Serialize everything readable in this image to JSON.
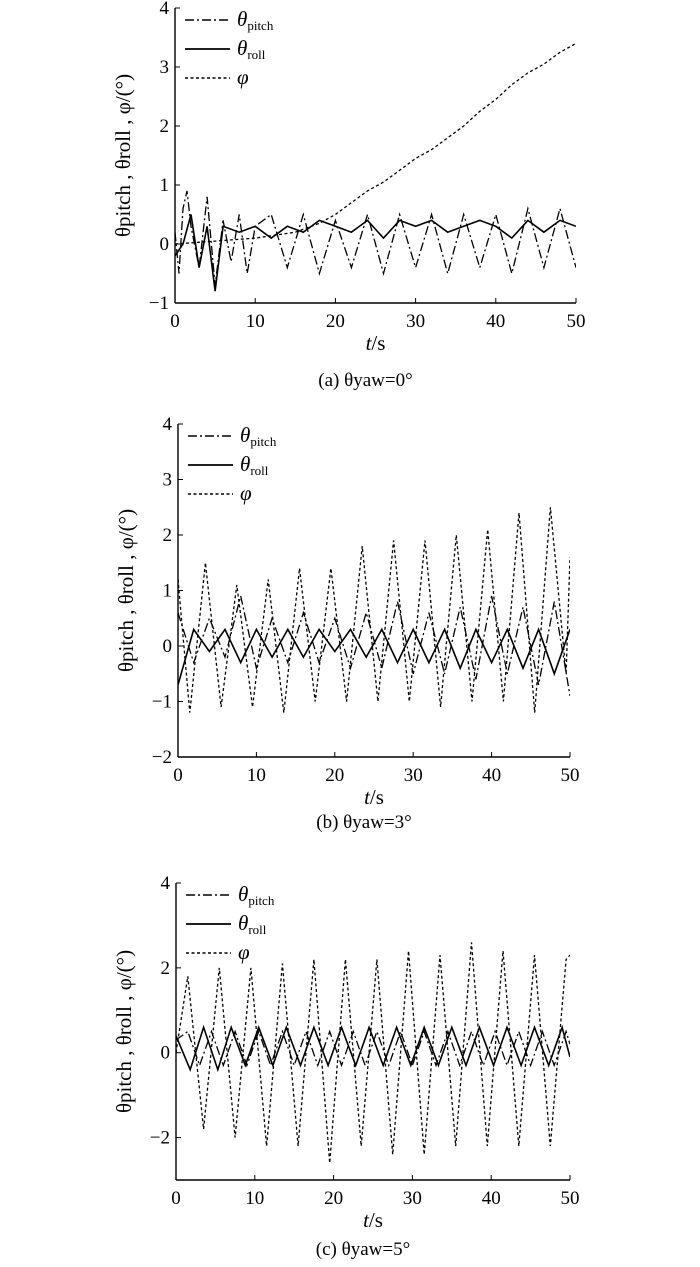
{
  "figure": {
    "xlabel": "t/s",
    "ylabel": "θpitch , θroll , φ/(°)"
  },
  "chart_data": [
    {
      "type": "line",
      "caption": "(a) θyaw=0°",
      "xlim": [
        0,
        50
      ],
      "ylim": [
        -1,
        4
      ],
      "xticks": [
        0,
        10,
        20,
        30,
        40,
        50
      ],
      "yticks": [
        -1,
        0,
        1,
        2,
        3,
        4
      ],
      "xlabel": "t/s",
      "ylabel": "θpitch , θroll , φ/(°)",
      "legend": [
        "θpitch",
        "θroll",
        "φ"
      ],
      "legend_position": "top-left",
      "series": [
        {
          "name": "θpitch",
          "style": "dashdot",
          "t": [
            0,
            0.5,
            1,
            1.5,
            2,
            3,
            4,
            5,
            6,
            7,
            8,
            9,
            10,
            12,
            14,
            16,
            18,
            20,
            22,
            24,
            26,
            28,
            30,
            32,
            34,
            36,
            38,
            40,
            42,
            44,
            46,
            48,
            50
          ],
          "values": [
            0.2,
            -0.5,
            0.6,
            0.9,
            0.3,
            -0.4,
            0.8,
            -0.7,
            0.4,
            -0.3,
            0.5,
            -0.5,
            0.3,
            0.5,
            -0.4,
            0.5,
            -0.5,
            0.4,
            -0.4,
            0.5,
            -0.5,
            0.5,
            -0.4,
            0.5,
            -0.5,
            0.5,
            -0.4,
            0.5,
            -0.5,
            0.6,
            -0.4,
            0.6,
            -0.4
          ]
        },
        {
          "name": "θroll",
          "style": "solid",
          "t": [
            0,
            1,
            2,
            3,
            4,
            5,
            6,
            8,
            10,
            12,
            14,
            16,
            18,
            20,
            22,
            24,
            26,
            28,
            30,
            32,
            34,
            36,
            38,
            40,
            42,
            44,
            46,
            48,
            50
          ],
          "values": [
            -0.2,
            0.0,
            0.5,
            -0.4,
            0.3,
            -0.8,
            0.3,
            0.2,
            0.3,
            0.1,
            0.3,
            0.2,
            0.4,
            0.3,
            0.2,
            0.4,
            0.1,
            0.4,
            0.3,
            0.4,
            0.2,
            0.3,
            0.4,
            0.3,
            0.1,
            0.4,
            0.2,
            0.4,
            0.3
          ]
        },
        {
          "name": "φ",
          "style": "dotted",
          "t": [
            0,
            5,
            10,
            15,
            18,
            20,
            22,
            24,
            26,
            28,
            30,
            32,
            34,
            36,
            38,
            40,
            42,
            44,
            46,
            48,
            50
          ],
          "values": [
            0.0,
            0.05,
            0.1,
            0.2,
            0.35,
            0.5,
            0.7,
            0.9,
            1.05,
            1.25,
            1.45,
            1.6,
            1.8,
            2.0,
            2.25,
            2.45,
            2.7,
            2.9,
            3.05,
            3.25,
            3.4
          ]
        }
      ]
    },
    {
      "type": "line",
      "caption": "(b) θyaw=3°",
      "xlim": [
        0,
        50
      ],
      "ylim": [
        -2,
        4
      ],
      "xticks": [
        0,
        10,
        20,
        30,
        40,
        50
      ],
      "yticks": [
        -2,
        -1,
        0,
        1,
        2,
        3,
        4
      ],
      "xlabel": "t/s",
      "ylabel": "θpitch , θroll , φ/(°)",
      "legend": [
        "θpitch",
        "θroll",
        "φ"
      ],
      "legend_position": "top-left",
      "series": [
        {
          "name": "θpitch",
          "style": "dashdot",
          "t": [
            0,
            2,
            4,
            6,
            8,
            10,
            12,
            14,
            16,
            18,
            20,
            22,
            24,
            26,
            28,
            30,
            32,
            34,
            36,
            38,
            40,
            42,
            44,
            46,
            48,
            50
          ],
          "values": [
            0.6,
            -0.3,
            0.5,
            -0.2,
            0.9,
            -0.4,
            0.5,
            -0.3,
            0.6,
            -0.3,
            0.5,
            -0.4,
            0.6,
            -0.4,
            0.8,
            -0.5,
            0.6,
            -0.5,
            0.7,
            -0.6,
            0.9,
            -0.5,
            0.7,
            -0.7,
            0.8,
            -0.9
          ]
        },
        {
          "name": "θroll",
          "style": "solid",
          "t": [
            0,
            2,
            4,
            6,
            8,
            10,
            12,
            14,
            16,
            18,
            20,
            22,
            24,
            26,
            28,
            30,
            32,
            34,
            36,
            38,
            40,
            42,
            44,
            46,
            48,
            50
          ],
          "values": [
            -0.7,
            0.3,
            -0.1,
            0.3,
            -0.3,
            0.3,
            -0.2,
            0.3,
            -0.2,
            0.3,
            -0.1,
            0.3,
            -0.2,
            0.3,
            -0.3,
            0.3,
            -0.3,
            0.3,
            -0.4,
            0.3,
            -0.3,
            0.3,
            -0.4,
            0.3,
            -0.5,
            0.3
          ]
        },
        {
          "name": "φ",
          "style": "dotted",
          "t": [
            0,
            1.5,
            3.5,
            5.5,
            7.5,
            9.5,
            11.5,
            13.5,
            15.5,
            17.5,
            19.5,
            21.5,
            23.5,
            25.5,
            27.5,
            29.5,
            31.5,
            33.5,
            35.5,
            37.5,
            39.5,
            41.5,
            43.5,
            45.5,
            47.5,
            49.5,
            50
          ],
          "values": [
            1.2,
            -1.2,
            1.5,
            -1.1,
            1.1,
            -1.1,
            1.2,
            -1.2,
            1.4,
            -1.0,
            1.4,
            -1.0,
            1.8,
            -1.0,
            1.9,
            -1.0,
            1.9,
            -1.1,
            2.0,
            -1.0,
            2.1,
            -1.0,
            2.4,
            -1.2,
            2.5,
            -0.5,
            1.6
          ]
        }
      ]
    },
    {
      "type": "line",
      "caption": "(c) θyaw=5°",
      "xlim": [
        0,
        50
      ],
      "ylim": [
        -3,
        4
      ],
      "xticks": [
        0,
        10,
        20,
        30,
        40,
        50
      ],
      "yticks": [
        -2,
        0,
        2,
        4
      ],
      "xlabel": "t/s",
      "ylabel": "θpitch , θroll , φ/(°)",
      "legend": [
        "θpitch",
        "θroll",
        "φ"
      ],
      "legend_position": "top-left",
      "series": [
        {
          "name": "θpitch",
          "style": "dashdot",
          "t": [
            0,
            1.5,
            3,
            4.5,
            6,
            7.5,
            9,
            10.5,
            12,
            13.5,
            15,
            16.5,
            18,
            19.5,
            21,
            22.5,
            24,
            25.5,
            27,
            28.5,
            30,
            31.5,
            33,
            34.5,
            36,
            37.5,
            39,
            40.5,
            42,
            43.5,
            45,
            46.5,
            48,
            49.5,
            50
          ],
          "values": [
            0.3,
            0.5,
            -0.3,
            0.5,
            -0.3,
            0.5,
            -0.3,
            0.5,
            -0.3,
            0.5,
            -0.3,
            0.5,
            -0.3,
            0.5,
            -0.3,
            0.5,
            -0.3,
            0.5,
            -0.3,
            0.5,
            -0.3,
            0.5,
            -0.3,
            0.5,
            -0.3,
            0.5,
            -0.3,
            0.5,
            -0.3,
            0.5,
            -0.3,
            0.5,
            -0.3,
            0.5,
            0.2
          ]
        },
        {
          "name": "θroll",
          "style": "solid",
          "t": [
            0,
            1.8,
            3.5,
            5.3,
            7.0,
            8.8,
            10.5,
            12.3,
            14.0,
            15.8,
            17.5,
            19.3,
            21.0,
            22.8,
            24.5,
            26.3,
            28.0,
            29.8,
            31.5,
            33.3,
            35.0,
            36.8,
            38.5,
            40.3,
            42.0,
            43.8,
            45.5,
            47.3,
            49.0,
            50
          ],
          "values": [
            0.4,
            -0.4,
            0.6,
            -0.4,
            0.6,
            -0.3,
            0.6,
            -0.3,
            0.6,
            -0.3,
            0.6,
            -0.3,
            0.6,
            -0.3,
            0.6,
            -0.3,
            0.6,
            -0.3,
            0.6,
            -0.3,
            0.6,
            -0.3,
            0.6,
            -0.3,
            0.6,
            -0.3,
            0.6,
            -0.3,
            0.6,
            -0.1
          ]
        },
        {
          "name": "φ",
          "style": "dotted",
          "t": [
            0,
            1.5,
            3.5,
            5.5,
            7.5,
            9.5,
            11.5,
            13.5,
            15.5,
            17.5,
            19.5,
            21.5,
            23.5,
            25.5,
            27.5,
            29.5,
            31.5,
            33.5,
            35.5,
            37.5,
            39.5,
            41.5,
            43.5,
            45.5,
            47.5,
            49.5,
            50
          ],
          "values": [
            0.0,
            1.8,
            -1.8,
            2.0,
            -2.0,
            2.0,
            -2.2,
            2.1,
            -2.2,
            2.2,
            -2.6,
            2.2,
            -2.2,
            2.2,
            -2.4,
            2.4,
            -2.4,
            2.3,
            -2.2,
            2.6,
            -2.2,
            2.4,
            -2.2,
            2.3,
            -2.2,
            2.2,
            2.3
          ]
        }
      ]
    }
  ]
}
